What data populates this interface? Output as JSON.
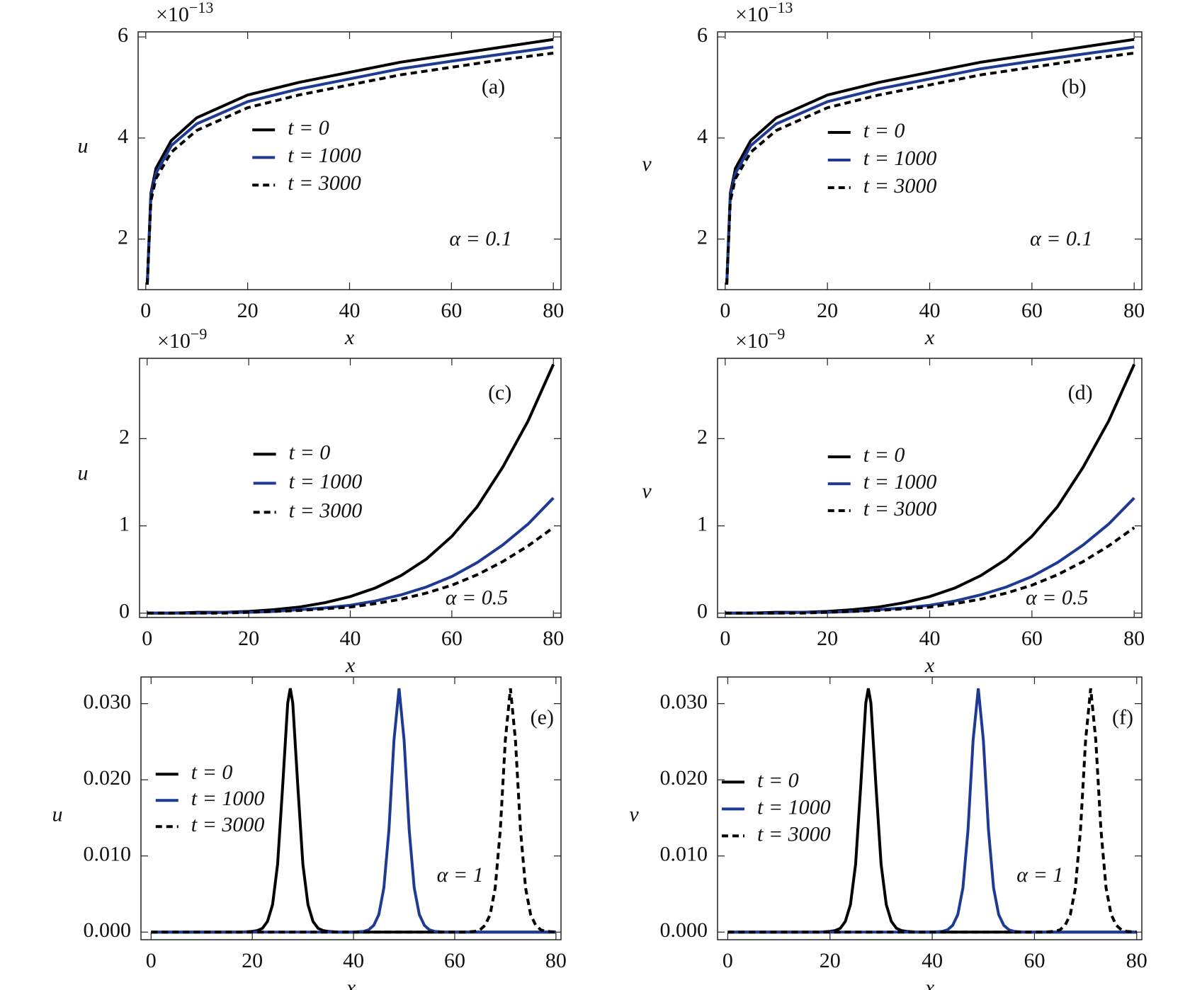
{
  "chart_data": [
    {
      "type": "line",
      "panel_label": "(a)",
      "annotation": "α = 0.1",
      "x_label": "x",
      "y_label": "u",
      "y_scale": {
        "base": "×10",
        "exponent": "−13"
      },
      "x": [
        0.3,
        1,
        2,
        5,
        10,
        20,
        30,
        40,
        50,
        60,
        70,
        80
      ],
      "series": [
        {
          "name": "t = 0",
          "color": "#000000",
          "dash": false,
          "values": [
            1.1,
            2.9,
            3.4,
            3.95,
            4.4,
            4.85,
            5.1,
            5.3,
            5.5,
            5.65,
            5.8,
            5.95
          ]
        },
        {
          "name": "t = 1000",
          "color": "#1f3a93",
          "dash": false,
          "values": [
            1.1,
            2.85,
            3.3,
            3.85,
            4.28,
            4.72,
            4.97,
            5.17,
            5.37,
            5.52,
            5.66,
            5.8
          ]
        },
        {
          "name": "t = 3000",
          "color": "#000000",
          "dash": true,
          "values": [
            1.1,
            2.75,
            3.2,
            3.72,
            4.15,
            4.6,
            4.85,
            5.05,
            5.25,
            5.4,
            5.55,
            5.68
          ]
        }
      ],
      "xlim": [
        -1.5,
        81.5
      ],
      "ylim": [
        1.0,
        6.1
      ],
      "xticks": [
        0,
        20,
        40,
        60,
        80
      ],
      "yticks": [
        2,
        4,
        6
      ]
    },
    {
      "type": "line",
      "panel_label": "(b)",
      "annotation": "α = 0.1",
      "x_label": "x",
      "y_label": "v",
      "y_scale": {
        "base": "×10",
        "exponent": "−13"
      },
      "x": [
        0.3,
        1,
        2,
        5,
        10,
        20,
        30,
        40,
        50,
        60,
        70,
        80
      ],
      "series": [
        {
          "name": "t = 0",
          "color": "#000000",
          "dash": false,
          "values": [
            1.1,
            2.9,
            3.4,
            3.95,
            4.4,
            4.85,
            5.1,
            5.3,
            5.5,
            5.65,
            5.8,
            5.95
          ]
        },
        {
          "name": "t = 1000",
          "color": "#1f3a93",
          "dash": false,
          "values": [
            1.1,
            2.85,
            3.3,
            3.85,
            4.28,
            4.72,
            4.97,
            5.17,
            5.37,
            5.52,
            5.66,
            5.8
          ]
        },
        {
          "name": "t = 3000",
          "color": "#000000",
          "dash": true,
          "values": [
            1.1,
            2.75,
            3.2,
            3.72,
            4.15,
            4.6,
            4.85,
            5.05,
            5.25,
            5.4,
            5.55,
            5.68
          ]
        }
      ],
      "xlim": [
        -1.5,
        81.5
      ],
      "ylim": [
        1.0,
        6.1
      ],
      "xticks": [
        0,
        20,
        40,
        60,
        80
      ],
      "yticks": [
        2,
        4,
        6
      ]
    },
    {
      "type": "line",
      "panel_label": "(c)",
      "annotation": "α = 0.5",
      "x_label": "x",
      "y_label": "u",
      "y_scale": {
        "base": "×10",
        "exponent": "−9"
      },
      "x": [
        0,
        5,
        10,
        15,
        20,
        25,
        30,
        35,
        40,
        45,
        50,
        55,
        60,
        65,
        70,
        75,
        80
      ],
      "series": [
        {
          "name": "t = 0",
          "color": "#000000",
          "dash": false,
          "values": [
            0,
            0,
            0.01,
            0.01,
            0.02,
            0.04,
            0.07,
            0.12,
            0.19,
            0.29,
            0.43,
            0.62,
            0.88,
            1.22,
            1.67,
            2.2,
            2.85
          ]
        },
        {
          "name": "t = 1000",
          "color": "#1f3a93",
          "dash": false,
          "values": [
            0,
            0,
            0,
            0.01,
            0.01,
            0.02,
            0.04,
            0.06,
            0.09,
            0.14,
            0.21,
            0.3,
            0.42,
            0.58,
            0.78,
            1.02,
            1.32
          ]
        },
        {
          "name": "t = 3000",
          "color": "#000000",
          "dash": true,
          "values": [
            0,
            0,
            0,
            0,
            0.01,
            0.02,
            0.03,
            0.05,
            0.07,
            0.11,
            0.16,
            0.23,
            0.32,
            0.44,
            0.59,
            0.77,
            0.98
          ]
        }
      ],
      "xlim": [
        -1.5,
        81.5
      ],
      "ylim": [
        -0.05,
        2.92
      ],
      "xticks": [
        0,
        20,
        40,
        60,
        80
      ],
      "yticks": [
        0,
        1,
        2
      ]
    },
    {
      "type": "line",
      "panel_label": "(d)",
      "annotation": "α = 0.5",
      "x_label": "x",
      "y_label": "v",
      "y_scale": {
        "base": "×10",
        "exponent": "−9"
      },
      "x": [
        0,
        5,
        10,
        15,
        20,
        25,
        30,
        35,
        40,
        45,
        50,
        55,
        60,
        65,
        70,
        75,
        80
      ],
      "series": [
        {
          "name": "t = 0",
          "color": "#000000",
          "dash": false,
          "values": [
            0,
            0,
            0.01,
            0.01,
            0.02,
            0.04,
            0.07,
            0.12,
            0.19,
            0.29,
            0.43,
            0.62,
            0.88,
            1.22,
            1.67,
            2.2,
            2.85
          ]
        },
        {
          "name": "t = 1000",
          "color": "#1f3a93",
          "dash": false,
          "values": [
            0,
            0,
            0,
            0.01,
            0.01,
            0.02,
            0.04,
            0.06,
            0.09,
            0.14,
            0.21,
            0.3,
            0.42,
            0.58,
            0.78,
            1.02,
            1.32
          ]
        },
        {
          "name": "t = 3000",
          "color": "#000000",
          "dash": true,
          "values": [
            0,
            0,
            0,
            0,
            0.01,
            0.02,
            0.03,
            0.05,
            0.07,
            0.11,
            0.16,
            0.23,
            0.32,
            0.44,
            0.59,
            0.77,
            0.98
          ]
        }
      ],
      "xlim": [
        -1.5,
        81.5
      ],
      "ylim": [
        -0.05,
        2.92
      ],
      "xticks": [
        0,
        20,
        40,
        60,
        80
      ],
      "yticks": [
        0,
        1,
        2
      ]
    },
    {
      "type": "line",
      "panel_label": "(e)",
      "annotation": "α = 1",
      "x_label": "x",
      "y_label": "u",
      "x": [
        0,
        10,
        18,
        20,
        21,
        22,
        23,
        24,
        25,
        26,
        27,
        27.5,
        28,
        29,
        30,
        31,
        32,
        33,
        34,
        35,
        37,
        40,
        42,
        43,
        44,
        45,
        46,
        47,
        48,
        49,
        50,
        51,
        52,
        53,
        54,
        55,
        56,
        58,
        60,
        62,
        64,
        65,
        66,
        67,
        68,
        69,
        70,
        71,
        72,
        73,
        74,
        75,
        76,
        77,
        78,
        80
      ],
      "series": [
        {
          "name": "t = 0",
          "color": "#000000",
          "dash": false,
          "values": [
            0,
            0,
            0,
            0.0001,
            0.0002,
            0.0005,
            0.0014,
            0.0036,
            0.0089,
            0.0191,
            0.0301,
            0.032,
            0.0301,
            0.0191,
            0.0089,
            0.0036,
            0.0014,
            0.0005,
            0.0002,
            0.0001,
            0,
            0,
            0,
            0,
            0,
            0,
            0,
            0,
            0,
            0,
            0,
            0,
            0,
            0,
            0,
            0,
            0,
            0,
            0,
            0,
            0,
            0,
            0,
            0,
            0,
            0,
            0,
            0,
            0,
            0,
            0,
            0,
            0,
            0,
            0,
            0
          ]
        },
        {
          "name": "t = 1000",
          "color": "#1f3a93",
          "dash": false,
          "values": [
            0,
            0,
            0,
            0,
            0,
            0,
            0,
            0,
            0,
            0,
            0,
            0,
            0,
            0,
            0,
            0,
            0,
            0,
            0,
            0,
            0,
            0,
            0.0001,
            0.0003,
            0.0009,
            0.0023,
            0.0058,
            0.0134,
            0.0252,
            0.032,
            0.0252,
            0.0134,
            0.0058,
            0.0023,
            0.0009,
            0.0003,
            0.0001,
            0,
            0,
            0,
            0,
            0,
            0,
            0,
            0,
            0,
            0,
            0,
            0,
            0,
            0,
            0,
            0,
            0,
            0,
            0
          ]
        },
        {
          "name": "t = 3000",
          "color": "#000000",
          "dash": true,
          "values": [
            0,
            0,
            0,
            0,
            0,
            0,
            0,
            0,
            0,
            0,
            0,
            0,
            0,
            0,
            0,
            0,
            0,
            0,
            0,
            0,
            0,
            0,
            0,
            0,
            0,
            0,
            0,
            0,
            0,
            0,
            0,
            0,
            0,
            0,
            0,
            0,
            0,
            0,
            0,
            0,
            0.0001,
            0.0003,
            0.0009,
            0.0023,
            0.0058,
            0.0134,
            0.0252,
            0.032,
            0.0252,
            0.0134,
            0.0058,
            0.0023,
            0.0009,
            0.0003,
            0.0001,
            0
          ]
        }
      ],
      "xlim": [
        -2,
        81
      ],
      "ylim": [
        -0.001,
        0.0335
      ],
      "xticks": [
        0,
        20,
        40,
        60,
        80
      ],
      "yticks": [
        {
          "value": 0,
          "label": "0.000"
        },
        {
          "value": 0.01,
          "label": "0.010"
        },
        {
          "value": 0.02,
          "label": "0.020"
        },
        {
          "value": 0.03,
          "label": "0.030"
        }
      ]
    },
    {
      "type": "line",
      "panel_label": "(f)",
      "annotation": "α = 1",
      "x_label": "x",
      "y_label": "v",
      "x": [
        0,
        10,
        18,
        20,
        21,
        22,
        23,
        24,
        25,
        26,
        27,
        27.5,
        28,
        29,
        30,
        31,
        32,
        33,
        34,
        35,
        37,
        40,
        42,
        43,
        44,
        45,
        46,
        47,
        48,
        49,
        50,
        51,
        52,
        53,
        54,
        55,
        56,
        58,
        60,
        62,
        64,
        65,
        66,
        67,
        68,
        69,
        70,
        71,
        72,
        73,
        74,
        75,
        76,
        77,
        78,
        80
      ],
      "series": [
        {
          "name": "t = 0",
          "color": "#000000",
          "dash": false,
          "values": [
            0,
            0,
            0,
            0.0001,
            0.0002,
            0.0005,
            0.0014,
            0.0036,
            0.0089,
            0.0191,
            0.0301,
            0.032,
            0.0301,
            0.0191,
            0.0089,
            0.0036,
            0.0014,
            0.0005,
            0.0002,
            0.0001,
            0,
            0,
            0,
            0,
            0,
            0,
            0,
            0,
            0,
            0,
            0,
            0,
            0,
            0,
            0,
            0,
            0,
            0,
            0,
            0,
            0,
            0,
            0,
            0,
            0,
            0,
            0,
            0,
            0,
            0,
            0,
            0,
            0,
            0,
            0,
            0
          ]
        },
        {
          "name": "t = 1000",
          "color": "#1f3a93",
          "dash": false,
          "values": [
            0,
            0,
            0,
            0,
            0,
            0,
            0,
            0,
            0,
            0,
            0,
            0,
            0,
            0,
            0,
            0,
            0,
            0,
            0,
            0,
            0,
            0,
            0.0001,
            0.0003,
            0.0009,
            0.0023,
            0.0058,
            0.0134,
            0.0252,
            0.032,
            0.0252,
            0.0134,
            0.0058,
            0.0023,
            0.0009,
            0.0003,
            0.0001,
            0,
            0,
            0,
            0,
            0,
            0,
            0,
            0,
            0,
            0,
            0,
            0,
            0,
            0,
            0,
            0,
            0,
            0,
            0
          ]
        },
        {
          "name": "t = 3000",
          "color": "#000000",
          "dash": true,
          "values": [
            0,
            0,
            0,
            0,
            0,
            0,
            0,
            0,
            0,
            0,
            0,
            0,
            0,
            0,
            0,
            0,
            0,
            0,
            0,
            0,
            0,
            0,
            0,
            0,
            0,
            0,
            0,
            0,
            0,
            0,
            0,
            0,
            0,
            0,
            0,
            0,
            0,
            0,
            0,
            0,
            0.0001,
            0.0003,
            0.0009,
            0.0023,
            0.0058,
            0.0134,
            0.0252,
            0.032,
            0.0252,
            0.0134,
            0.0058,
            0.0023,
            0.0009,
            0.0003,
            0.0001,
            0
          ]
        }
      ],
      "xlim": [
        -2,
        81
      ],
      "ylim": [
        -0.001,
        0.0335
      ],
      "xticks": [
        0,
        20,
        40,
        60,
        80
      ],
      "yticks": [
        {
          "value": 0,
          "label": "0.000"
        },
        {
          "value": 0.01,
          "label": "0.010"
        },
        {
          "value": 0.02,
          "label": "0.020"
        },
        {
          "value": 0.03,
          "label": "0.030"
        }
      ]
    }
  ]
}
